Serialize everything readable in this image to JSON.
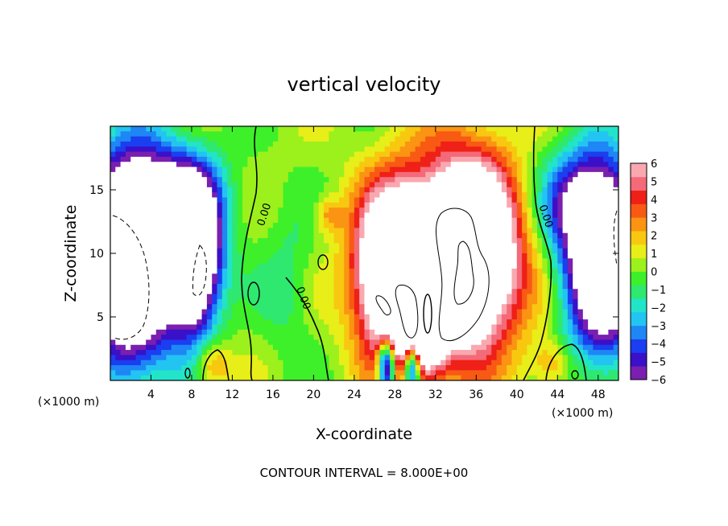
{
  "chart_data": {
    "type": "heatmap",
    "title": "vertical velocity",
    "xlabel": "X-coordinate",
    "ylabel": "Z-coordinate",
    "x_unit_note": "(×1000 m)",
    "y_unit_note": "(×1000 m)",
    "xlim": [
      0,
      50
    ],
    "ylim": [
      0,
      20
    ],
    "xticks": [
      4,
      8,
      12,
      16,
      20,
      24,
      28,
      32,
      36,
      40,
      44,
      48
    ],
    "yticks": [
      5,
      10,
      15
    ],
    "colorbar": {
      "min": -6,
      "max": 6,
      "ticks": [
        6,
        5,
        4,
        3,
        2,
        1,
        0,
        -1,
        -2,
        -3,
        -4,
        -5,
        -6
      ],
      "colors": [
        "#7a1fb0",
        "#3a10c8",
        "#1a3ef0",
        "#1f86f5",
        "#22c4f2",
        "#22e4c8",
        "#2ee870",
        "#3ef02a",
        "#9cf01c",
        "#e8ee18",
        "#f8c810",
        "#fb9412",
        "#f85a14",
        "#ef2018",
        "#f46a78",
        "#f9a8b0"
      ],
      "out_of_range_color": "#ffffff"
    },
    "contour_labels": [
      "0.00",
      "0.00"
    ],
    "footer": "CONTOUR INTERVAL = 8.000E+00",
    "field_features": [
      {
        "x": 35.0,
        "z": 10.0,
        "sx": 3.4,
        "sz": 5.0,
        "w": 16
      },
      {
        "x": 28.0,
        "z": 8.5,
        "sx": 2.6,
        "sz": 4.5,
        "w": 14
      },
      {
        "x": 30.5,
        "z": 3.5,
        "sx": 1.6,
        "sz": 2.6,
        "w": 7
      },
      {
        "x": 21.5,
        "z": 13.0,
        "sx": 1.0,
        "sz": 1.0,
        "w": 2.5
      },
      {
        "x": 27.2,
        "z": 1.2,
        "sx": 0.6,
        "sz": 1.6,
        "w": -10
      },
      {
        "x": 29.7,
        "z": 1.2,
        "sx": 0.6,
        "sz": 1.6,
        "w": -10
      },
      {
        "x": 2.0,
        "z": 9.0,
        "sx": 3.0,
        "sz": 5.5,
        "w": -13
      },
      {
        "x": 8.2,
        "z": 9.5,
        "sx": 1.8,
        "sz": 4.0,
        "w": -12
      },
      {
        "x": 5.0,
        "z": 14.0,
        "sx": 4.0,
        "sz": 3.0,
        "w": -6
      },
      {
        "x": 48.5,
        "z": 9.0,
        "sx": 2.6,
        "sz": 5.0,
        "w": -11
      },
      {
        "x": 46.5,
        "z": 14.0,
        "sx": 3.0,
        "sz": 3.0,
        "w": -5
      },
      {
        "x": 10.0,
        "z": 1.2,
        "sx": 1.2,
        "sz": 1.3,
        "w": 3
      },
      {
        "x": 43.5,
        "z": 1.3,
        "sx": 1.5,
        "sz": 1.3,
        "w": 2.5
      },
      {
        "x": 17.5,
        "z": 7.5,
        "sx": 1.8,
        "sz": 4.0,
        "w": -1.5
      }
    ]
  }
}
